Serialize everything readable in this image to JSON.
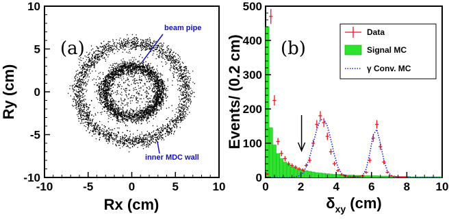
{
  "chart_data": [
    {
      "type": "scatter",
      "panel_label": "(a)",
      "xlabel": "Rx (cm)",
      "ylabel": "Ry (cm)",
      "xlim": [
        -10,
        10
      ],
      "ylim": [
        -10,
        10
      ],
      "x_ticks": [
        "-10",
        "-5",
        "0",
        "5",
        "10"
      ],
      "y_ticks": [
        "-10",
        "-5",
        "0",
        "5",
        "10"
      ],
      "rings": [
        {
          "name": "beam pipe",
          "radius_cm": 3.2
        },
        {
          "name": "inner MDC wall",
          "radius_cm": 6.2
        }
      ],
      "annotations": [
        "beam pipe",
        "inner MDC wall"
      ]
    },
    {
      "type": "bar",
      "panel_label": "(b)",
      "xlabel": "δxy (cm)",
      "xlabel_main": "δ",
      "xlabel_sub": "xy",
      "xlabel_unit": " (cm)",
      "ylabel": "Events/ (0.2 cm)",
      "xlim": [
        0,
        10
      ],
      "ylim": [
        0,
        500
      ],
      "x_ticks": [
        "0",
        "2",
        "4",
        "6",
        "8",
        "10"
      ],
      "y_ticks": [
        "0",
        "100",
        "200",
        "300",
        "400",
        "500"
      ],
      "cut_arrow_x": 2.0,
      "bin_width": 0.2,
      "bin_centers": [
        0.1,
        0.3,
        0.5,
        0.7,
        0.9,
        1.1,
        1.3,
        1.5,
        1.7,
        1.9,
        2.1,
        2.3,
        2.5,
        2.7,
        2.9,
        3.1,
        3.3,
        3.5,
        3.7,
        3.9,
        4.1,
        4.3,
        4.5,
        4.7,
        4.9,
        5.1,
        5.3,
        5.5,
        5.7,
        5.9,
        6.1,
        6.3,
        6.5,
        6.7,
        6.9,
        7.1,
        7.3,
        7.5,
        7.7,
        7.9,
        8.1,
        8.3,
        8.5,
        8.7,
        8.9,
        9.1,
        9.3,
        9.5,
        9.7,
        9.9
      ],
      "legend": [
        "Data",
        "Signal MC",
        "γ Conv. MC"
      ],
      "series": [
        {
          "name": "Data",
          "style": "points",
          "color": "#e8141a",
          "values": [
            10,
            470,
            225,
            105,
            70,
            55,
            40,
            35,
            30,
            25,
            22,
            35,
            50,
            100,
            155,
            180,
            160,
            120,
            75,
            40,
            20,
            8,
            5,
            3,
            2,
            3,
            3,
            5,
            15,
            50,
            115,
            155,
            90,
            45,
            15,
            5,
            3,
            2,
            1,
            1,
            0,
            0,
            0,
            0,
            0,
            0,
            0,
            0,
            0,
            0
          ]
        },
        {
          "name": "Signal MC",
          "style": "hist",
          "color": "#2ee32e",
          "values": [
            440,
            145,
            95,
            70,
            55,
            45,
            38,
            32,
            28,
            25,
            22,
            20,
            18,
            16,
            14,
            13,
            12,
            11,
            10,
            9,
            9,
            8,
            8,
            7,
            7,
            6,
            6,
            6,
            5,
            5,
            5,
            5,
            4,
            4,
            4,
            4,
            3,
            3,
            3,
            3,
            3,
            2,
            2,
            2,
            2,
            2,
            2,
            2,
            2,
            2
          ]
        },
        {
          "name": "γ Conv. MC",
          "style": "dotted",
          "color": "#1a1aff",
          "values": [
            0,
            0,
            0,
            0,
            0,
            0,
            0,
            0,
            2,
            5,
            12,
            30,
            60,
            100,
            140,
            168,
            170,
            150,
            110,
            65,
            30,
            12,
            5,
            2,
            1,
            1,
            2,
            6,
            25,
            70,
            125,
            140,
            100,
            50,
            18,
            6,
            2,
            1,
            0,
            0,
            0,
            0,
            0,
            0,
            0,
            0,
            0,
            0,
            0,
            0
          ]
        }
      ]
    }
  ]
}
